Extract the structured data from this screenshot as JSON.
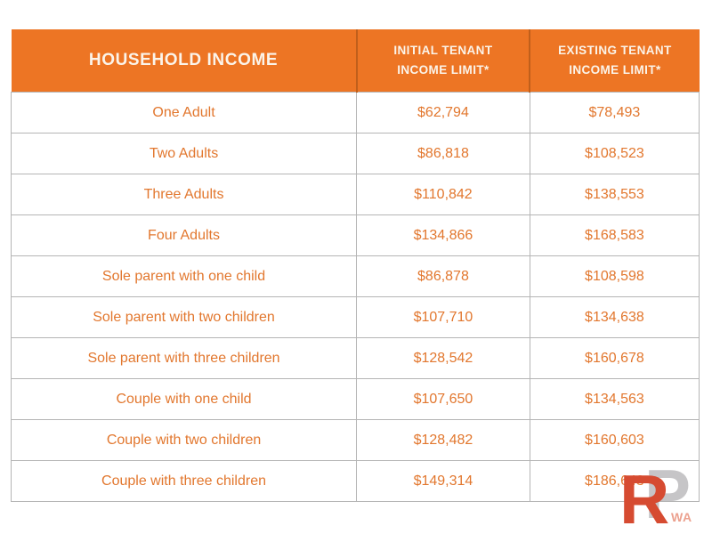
{
  "chart_data": {
    "type": "table",
    "title": "",
    "columns": [
      "HOUSEHOLD INCOME",
      "INITIAL TENANT INCOME LIMIT*",
      "EXISTING TENANT INCOME LIMIT*"
    ],
    "rows": [
      [
        "One Adult",
        "$62,794",
        "$78,493"
      ],
      [
        "Two Adults",
        "$86,818",
        "$108,523"
      ],
      [
        "Three Adults",
        "$110,842",
        "$138,553"
      ],
      [
        "Four Adults",
        "$134,866",
        "$168,583"
      ],
      [
        "Sole parent with one child",
        "$86,878",
        "$108,598"
      ],
      [
        "Sole parent with two children",
        "$107,710",
        "$134,638"
      ],
      [
        "Sole parent with three children",
        "$128,542",
        "$160,678"
      ],
      [
        "Couple with one child",
        "$107,650",
        "$134,563"
      ],
      [
        "Couple with two children",
        "$128,482",
        "$160,603"
      ],
      [
        "Couple with three children",
        "$149,314",
        "$186,643"
      ]
    ]
  },
  "watermark": {
    "r": "R",
    "p": "P",
    "sub": "WA"
  },
  "colors": {
    "header_bg": "#ED7524",
    "header_divider": "#c05f1b",
    "header_text": "#FBF4EA",
    "cell_text": "#E2772E",
    "grid_border": "#b5b5b5",
    "logo_red": "#D64B31",
    "logo_gray": "#C6C5C7",
    "logo_salmon": "#ECA18F"
  }
}
